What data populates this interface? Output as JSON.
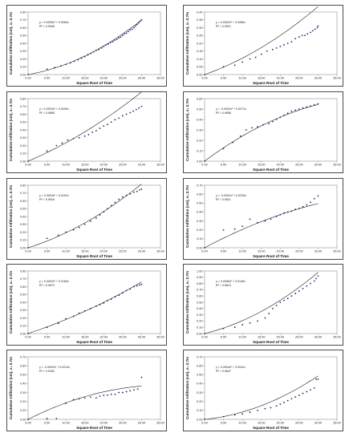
{
  "chart_data": [
    {
      "type": "scatter",
      "xlabel": "Square Root of Time",
      "ylabel": "Cumulative Infiltration (cm), x₁ 2.7m",
      "xlim": [
        0,
        35
      ],
      "ylim": [
        0,
        0.8
      ],
      "xticks": [
        "0.00",
        "5.00",
        "10.00",
        "15.00",
        "20.00",
        "25.00",
        "30.00",
        "35.00"
      ],
      "yticks": [
        "0.00",
        "0.10",
        "0.20",
        "0.30",
        "0.40",
        "0.50",
        "0.60",
        "0.70",
        "0.80"
      ],
      "equation": "y = 0.0005x² + 0.0083x",
      "r2": "R² = 0.9946",
      "trendline": {
        "a": 0.0005,
        "b": 0.0083
      },
      "series": [
        {
          "x": [
            0,
            5,
            7,
            8.7,
            10,
            11.2,
            12.2,
            13.2,
            14.1,
            15,
            15.8,
            16.6,
            17.3,
            18,
            18.7,
            19.4,
            20,
            20.6,
            21.2,
            21.8,
            22.4,
            22.9,
            23.5,
            24,
            24.5,
            25,
            25.5,
            26,
            26.5,
            27,
            27.5,
            28,
            28.4,
            28.8,
            29.2,
            29.6,
            30
          ],
          "y": [
            0,
            0.07,
            0.09,
            0.11,
            0.13,
            0.15,
            0.17,
            0.19,
            0.21,
            0.23,
            0.25,
            0.27,
            0.29,
            0.31,
            0.32,
            0.34,
            0.36,
            0.38,
            0.39,
            0.41,
            0.42,
            0.44,
            0.45,
            0.47,
            0.48,
            0.5,
            0.52,
            0.53,
            0.55,
            0.57,
            0.58,
            0.6,
            0.62,
            0.64,
            0.66,
            0.68,
            0.7
          ]
        }
      ]
    },
    {
      "type": "scatter",
      "xlabel": "Square Root of Time",
      "ylabel": "Cumulative Infiltration (cm), x₁ 2.7m",
      "xlim": [
        0,
        35
      ],
      "ylim": [
        0,
        0.4
      ],
      "xticks": [
        "0.00",
        "5.00",
        "10.00",
        "15.00",
        "20.00",
        "25.00",
        "30.00",
        "35.00"
      ],
      "yticks": [
        "0.00",
        "0.05",
        "0.10",
        "0.15",
        "0.20",
        "0.25",
        "0.30",
        "0.35",
        "0.40"
      ],
      "equation": "y = 0.0002x² + 0.0085x",
      "r2": "R² = 0.9921",
      "trendline": {
        "a": 0.0002,
        "b": 0.0085
      },
      "series": [
        {
          "x": [
            0,
            5,
            8,
            10,
            12,
            13.5,
            15,
            16.5,
            18,
            19,
            20,
            21,
            22,
            23,
            24,
            25,
            25.8,
            26.5,
            27.2,
            28,
            28.6,
            29.2,
            29.8,
            30
          ],
          "y": [
            0,
            0.05,
            0.06,
            0.08,
            0.1,
            0.11,
            0.13,
            0.15,
            0.16,
            0.17,
            0.18,
            0.19,
            0.2,
            0.21,
            0.23,
            0.24,
            0.25,
            0.25,
            0.26,
            0.27,
            0.28,
            0.29,
            0.3,
            0.31
          ]
        }
      ]
    },
    {
      "type": "scatter",
      "xlabel": "Square Root of Time",
      "ylabel": "Cumulative Infiltration (cm), x₁ 2.7m",
      "xlim": [
        0,
        35
      ],
      "ylim": [
        0,
        0.8
      ],
      "xticks": [
        "0.00",
        "5.00",
        "10.00",
        "15.00",
        "20.00",
        "25.00",
        "30.00",
        "35.00"
      ],
      "yticks": [
        "0.00",
        "0.10",
        "0.20",
        "0.30",
        "0.40",
        "0.50",
        "0.60",
        "0.70",
        "0.80"
      ],
      "equation": "y = 0.0003x² + 0.0205x",
      "r2": "R² = 0.9889",
      "trendline": {
        "a": 0.0003,
        "b": 0.0205
      },
      "series": [
        {
          "x": [
            0,
            5,
            7.5,
            9,
            10.5,
            12,
            13.5,
            15,
            16,
            17,
            18,
            19,
            20,
            21,
            22,
            23,
            24,
            25,
            26,
            27,
            27.8,
            28.6,
            29.3,
            30
          ],
          "y": [
            0,
            0.13,
            0.2,
            0.23,
            0.27,
            0.29,
            0.3,
            0.32,
            0.34,
            0.37,
            0.39,
            0.42,
            0.45,
            0.47,
            0.5,
            0.53,
            0.55,
            0.58,
            0.6,
            0.62,
            0.64,
            0.66,
            0.68,
            0.7
          ]
        }
      ]
    },
    {
      "type": "scatter",
      "xlabel": "Square Root of Time",
      "ylabel": "Cumulative Infiltration (cm), x₁ 2.7m",
      "xlim": [
        0,
        35
      ],
      "ylim": [
        0,
        0.6
      ],
      "xticks": [
        "0.00",
        "5.00",
        "10.00",
        "15.00",
        "20.00",
        "25.00",
        "30.00",
        "35.00"
      ],
      "yticks": [
        "0.00",
        "0.10",
        "0.20",
        "0.30",
        "0.40",
        "0.50",
        "0.60"
      ],
      "equation": "y = -0.0003x² + 0.0271x",
      "r2": "R² = 0.9856",
      "trendline": {
        "a": -0.0003,
        "b": 0.0271
      },
      "series": [
        {
          "x": [
            0,
            5,
            7.5,
            9.5,
            11,
            12.5,
            14,
            15.5,
            17,
            18,
            19,
            20,
            21,
            22,
            23,
            24,
            25,
            26,
            27,
            28,
            29,
            30
          ],
          "y": [
            0,
            0.12,
            0.18,
            0.24,
            0.3,
            0.32,
            0.33,
            0.35,
            0.36,
            0.38,
            0.4,
            0.42,
            0.44,
            0.46,
            0.48,
            0.49,
            0.5,
            0.51,
            0.52,
            0.53,
            0.54,
            0.55
          ]
        }
      ]
    },
    {
      "type": "scatter",
      "xlabel": "Square Root of Time",
      "ylabel": "Cumulative Infiltration (cm), x₁ 2.7m",
      "xlim": [
        0,
        35
      ],
      "ylim": [
        0,
        0.8
      ],
      "xticks": [
        "0.00",
        "5.00",
        "10.00",
        "15.00",
        "20.00",
        "25.00",
        "30.00",
        "35.00"
      ],
      "yticks": [
        "0.00",
        "0.10",
        "0.20",
        "0.30",
        "0.40",
        "0.50",
        "0.60",
        "0.70",
        "0.80"
      ],
      "equation": "y = 0.0004x² + 0.0152x",
      "r2": "R² = 0.9916",
      "trendline": {
        "a": 0.0004,
        "b": 0.0152
      },
      "series": [
        {
          "x": [
            0,
            5,
            8,
            10,
            12,
            13.5,
            15,
            16.5,
            18,
            19,
            20,
            21,
            22,
            23,
            24,
            25,
            26,
            27,
            28,
            28.8,
            29.5,
            30
          ],
          "y": [
            0,
            0.12,
            0.16,
            0.2,
            0.23,
            0.26,
            0.3,
            0.34,
            0.38,
            0.42,
            0.46,
            0.5,
            0.54,
            0.58,
            0.62,
            0.65,
            0.67,
            0.69,
            0.71,
            0.72,
            0.74,
            0.75
          ]
        }
      ]
    },
    {
      "type": "scatter",
      "xlabel": "Square Root of Time",
      "ylabel": "Cumulative Infiltration (cm), x₁ 2.7m",
      "xlim": [
        0,
        35
      ],
      "ylim": [
        0,
        0.7
      ],
      "xticks": [
        "0.00",
        "5.00",
        "10.00",
        "15.00",
        "20.00",
        "25.00",
        "30.00",
        "35.00"
      ],
      "yticks": [
        "0.00",
        "0.10",
        "0.20",
        "0.30",
        "0.40",
        "0.50",
        "0.60",
        "0.70"
      ],
      "equation": "y = -0.0002x² + 0.0225x",
      "r2": "R² = 0.9511",
      "trendline": {
        "a": -0.0002,
        "b": 0.0225
      },
      "series": [
        {
          "x": [
            0,
            5,
            8,
            10,
            12,
            14,
            16,
            17.5,
            19,
            20,
            21,
            22,
            23,
            24,
            25,
            26,
            27,
            28,
            29,
            30
          ],
          "y": [
            0,
            0.2,
            0.21,
            0.24,
            0.32,
            0.28,
            0.3,
            0.32,
            0.35,
            0.37,
            0.39,
            0.4,
            0.41,
            0.43,
            0.44,
            0.46,
            0.48,
            0.51,
            0.55,
            0.58
          ]
        }
      ]
    },
    {
      "type": "scatter",
      "xlabel": "Square Root of Time",
      "ylabel": "Cumulative Infiltration (cm), x₁ 2.7m",
      "xlim": [
        0,
        35
      ],
      "ylim": [
        0,
        0.8
      ],
      "xticks": [
        "0.00",
        "5.00",
        "10.00",
        "15.00",
        "20.00",
        "25.00",
        "30.00",
        "35.00"
      ],
      "yticks": [
        "0.00",
        "0.10",
        "0.20",
        "0.30",
        "0.40",
        "0.50",
        "0.60",
        "0.70",
        "0.80"
      ],
      "equation": "y = 0.0002x² + 0.0160x",
      "r2": "R² = 0.9972",
      "trendline": {
        "a": 0.0002,
        "b": 0.016
      },
      "series": [
        {
          "x": [
            0,
            5,
            8,
            10,
            12,
            13.5,
            15,
            16.5,
            18,
            19,
            20,
            21,
            22,
            23,
            24,
            25,
            26,
            27,
            28,
            28.8,
            29.5,
            30
          ],
          "y": [
            0,
            0.08,
            0.13,
            0.19,
            0.22,
            0.26,
            0.29,
            0.32,
            0.35,
            0.37,
            0.39,
            0.42,
            0.44,
            0.47,
            0.49,
            0.52,
            0.55,
            0.57,
            0.6,
            0.61,
            0.62,
            0.63
          ]
        }
      ]
    },
    {
      "type": "scatter",
      "xlabel": "Square Root of Time",
      "ylabel": "Cumulative Infiltration (cm), x₁ 2.7m",
      "xlim": [
        0,
        35
      ],
      "ylim": [
        0,
        1.0
      ],
      "xticks": [
        "0.00",
        "5.00",
        "10.00",
        "15.00",
        "20.00",
        "25.00",
        "30.00",
        "35.00"
      ],
      "yticks": [
        "0.00",
        "0.10",
        "0.20",
        "0.30",
        "0.40",
        "0.50",
        "0.60",
        "0.70",
        "0.80",
        "0.90",
        "1.00"
      ],
      "equation": "y = 0.0006x² + 0.0146x",
      "r2": "R² = 0.9813",
      "trendline": {
        "a": 0.0006,
        "b": 0.0146
      },
      "series": [
        {
          "x": [
            0,
            5,
            8,
            10,
            12,
            14,
            16,
            17,
            18,
            19,
            20,
            21,
            22,
            23,
            24,
            25,
            26,
            27,
            28,
            29,
            29.5,
            30
          ],
          "y": [
            0,
            0.08,
            0.1,
            0.14,
            0.17,
            0.2,
            0.25,
            0.32,
            0.4,
            0.45,
            0.5,
            0.53,
            0.56,
            0.6,
            0.64,
            0.68,
            0.72,
            0.76,
            0.8,
            0.84,
            0.88,
            0.92
          ]
        }
      ]
    },
    {
      "type": "scatter",
      "xlabel": "Square Root of Time",
      "ylabel": "Cumulative Infiltration (cm), x₁ 2.7m",
      "xlim": [
        0,
        35
      ],
      "ylim": [
        0,
        0.7
      ],
      "xticks": [
        "0.00",
        "5.00",
        "10.00",
        "15.00",
        "20.00",
        "25.00",
        "30.00",
        "35.00"
      ],
      "yticks": [
        "0.00",
        "0.10",
        "0.20",
        "0.30",
        "0.40",
        "0.50",
        "0.60",
        "0.70"
      ],
      "equation": "y = -0.0003x² + 0.0214x",
      "r2": "R² = 0.9162",
      "trendline": {
        "a": -0.0003,
        "b": 0.0214
      },
      "series": [
        {
          "x": [
            0,
            5,
            7.5,
            10,
            12,
            13.5,
            15,
            16.5,
            18,
            19,
            20,
            21,
            22,
            23,
            24,
            25,
            26,
            27,
            28,
            29,
            30
          ],
          "y": [
            0,
            0.01,
            0.01,
            0.18,
            0.22,
            0.23,
            0.24,
            0.25,
            0.24,
            0.26,
            0.27,
            0.27,
            0.28,
            0.28,
            0.3,
            0.3,
            0.31,
            0.32,
            0.33,
            0.34,
            0.47
          ]
        }
      ]
    },
    {
      "type": "scatter",
      "xlabel": "Square Root of Time",
      "ylabel": "Cumulative Infiltration (cm), x₁ 2.7m",
      "xlim": [
        0,
        35
      ],
      "ylim": [
        0,
        0.7
      ],
      "xticks": [
        "0.00",
        "5.00",
        "10.00",
        "15.00",
        "20.00",
        "25.00",
        "30.00",
        "35.00"
      ],
      "yticks": [
        "0.00",
        "0.10",
        "0.20",
        "0.30",
        "0.40",
        "0.50",
        "0.60",
        "0.70"
      ],
      "equation": "y = 0.0004x² + 0.0042x",
      "r2": "R² = 0.9847",
      "trendline": {
        "a": 0.0004,
        "b": 0.0042
      },
      "series": [
        {
          "x": [
            0,
            5,
            8,
            10,
            12,
            14,
            16,
            17.5,
            19,
            20,
            21,
            22,
            23,
            24,
            25,
            26,
            27,
            28,
            29,
            29.5,
            30
          ],
          "y": [
            0,
            0.03,
            0.05,
            0.06,
            0.08,
            0.1,
            0.12,
            0.13,
            0.15,
            0.17,
            0.19,
            0.21,
            0.23,
            0.25,
            0.27,
            0.29,
            0.31,
            0.33,
            0.35,
            0.45,
            0.45
          ]
        }
      ]
    }
  ]
}
